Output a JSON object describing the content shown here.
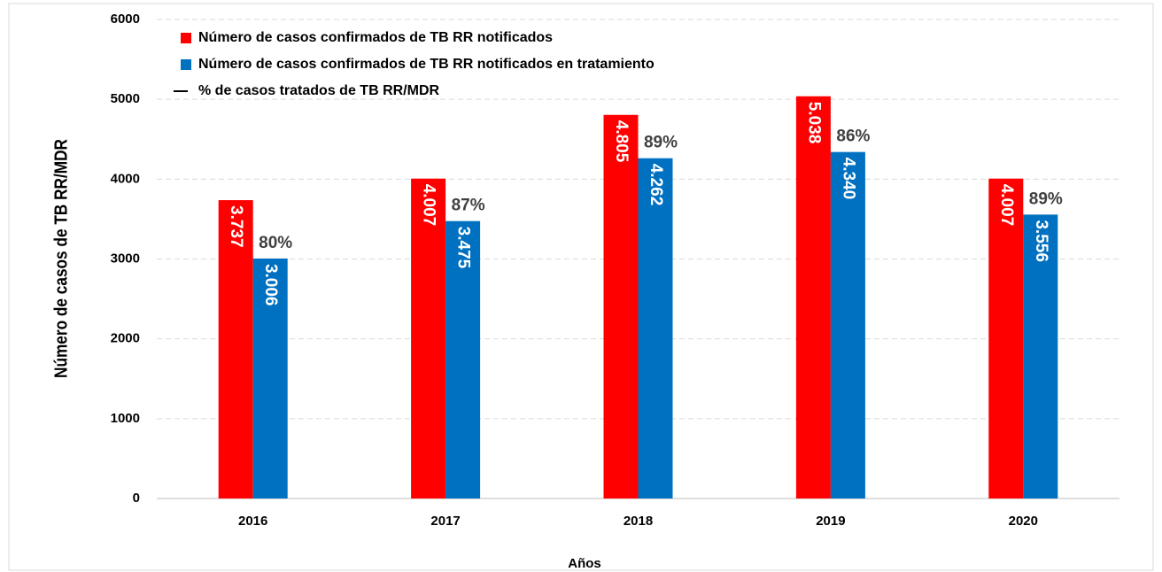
{
  "chart_data": {
    "type": "bar",
    "x_label": "Años",
    "y_label": "Número de casos de TB RR/MDR",
    "categories": [
      "2016",
      "2017",
      "2018",
      "2019",
      "2020"
    ],
    "series": [
      {
        "name": "Número de casos confirmados de TB RR notificados",
        "color": "#ff0000",
        "values": [
          3737,
          4007,
          4805,
          5038,
          4007
        ],
        "value_labels": [
          "3.737",
          "4.007",
          "4.805",
          "5.038",
          "4.007"
        ]
      },
      {
        "name": "Número de casos confirmados de TB RR notificados en tratamiento",
        "color": "#0070c0",
        "values": [
          3006,
          3475,
          4262,
          4340,
          3556
        ],
        "value_labels": [
          "3.006",
          "3.475",
          "4.262",
          "4.340",
          "3.556"
        ]
      },
      {
        "name": "% de casos tratados de TB RR/MDR",
        "color": "#000000",
        "kind": "label-only",
        "values": [
          80,
          87,
          89,
          86,
          89
        ],
        "value_labels": [
          "80%",
          "87%",
          "89%",
          "86%",
          "89%"
        ]
      }
    ],
    "ylim": [
      0,
      6000
    ],
    "yticks": [
      0,
      1000,
      2000,
      3000,
      4000,
      5000,
      6000
    ],
    "grid": true,
    "legend": "top-left"
  }
}
